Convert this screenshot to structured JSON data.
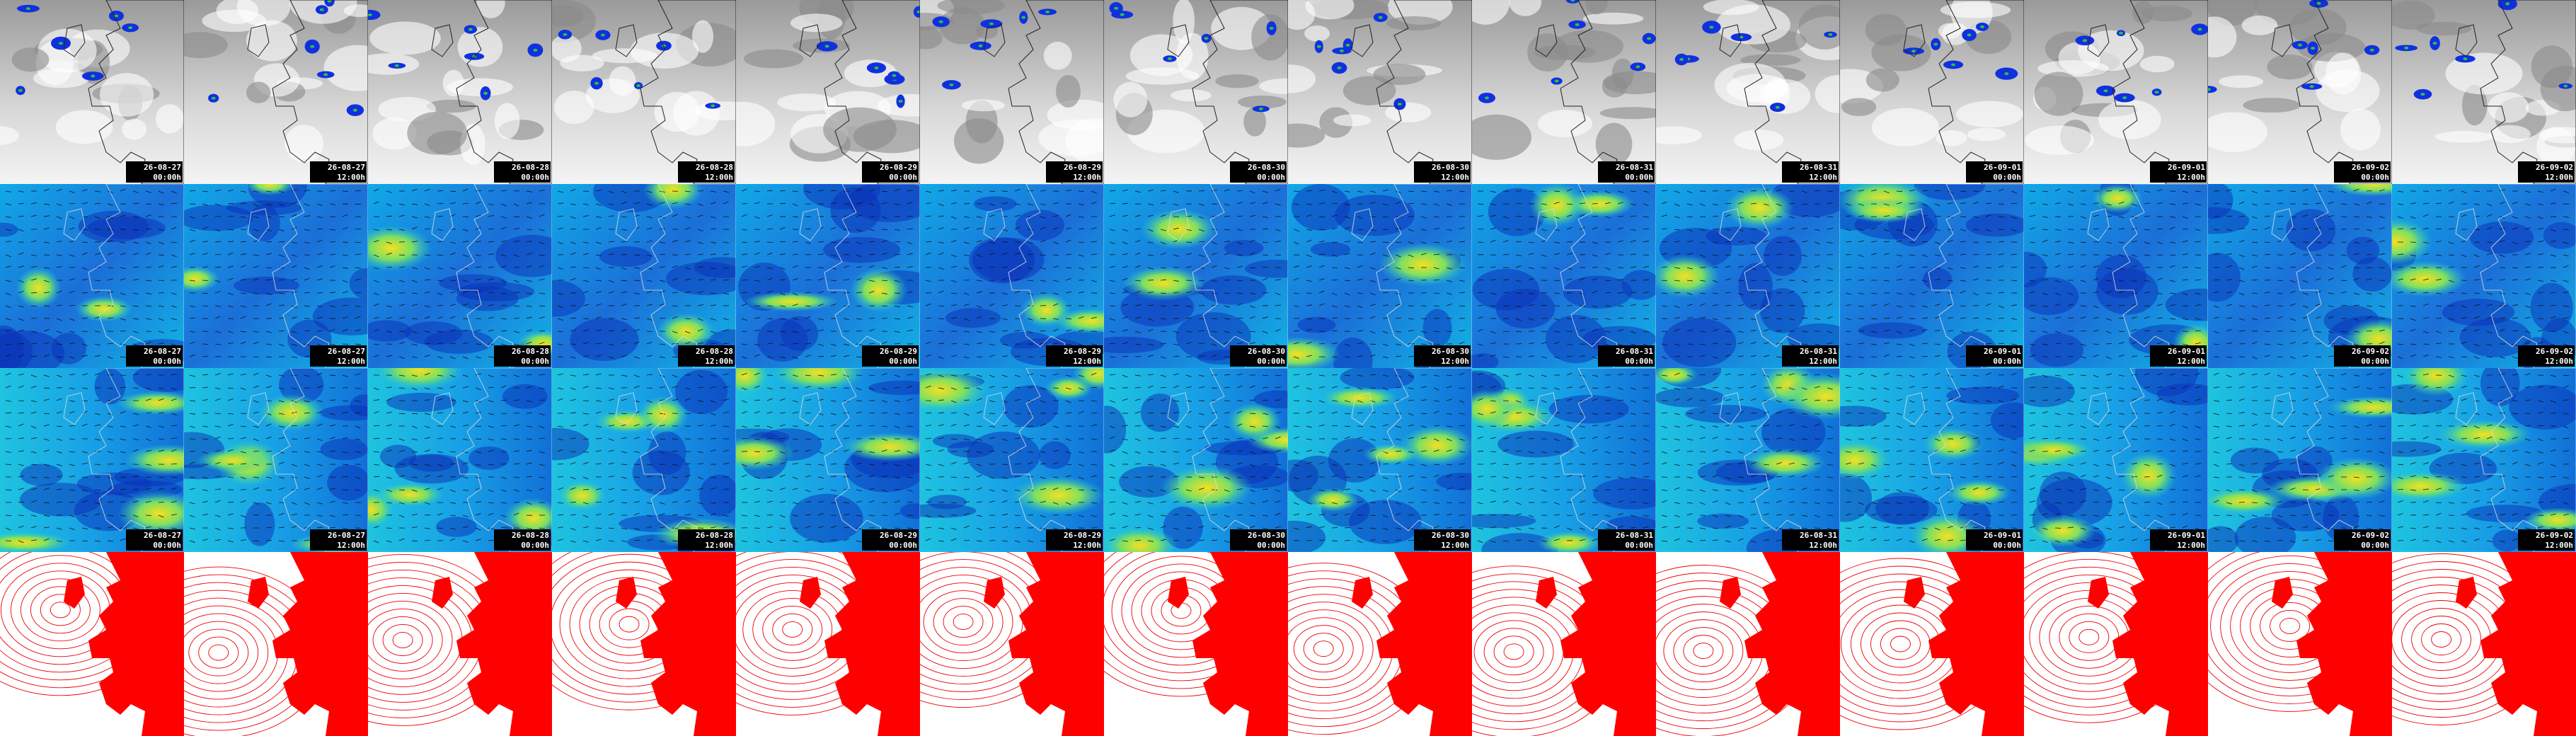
{
  "columns": [
    {
      "date": "26-08-27",
      "time": "00:00h"
    },
    {
      "date": "26-08-27",
      "time": "12:00h"
    },
    {
      "date": "26-08-28",
      "time": "00:00h"
    },
    {
      "date": "26-08-28",
      "time": "12:00h"
    },
    {
      "date": "26-08-29",
      "time": "00:00h"
    },
    {
      "date": "26-08-29",
      "time": "12:00h"
    },
    {
      "date": "26-08-30",
      "time": "00:00h"
    },
    {
      "date": "26-08-30",
      "time": "12:00h"
    },
    {
      "date": "26-08-31",
      "time": "00:00h"
    },
    {
      "date": "26-08-31",
      "time": "12:00h"
    },
    {
      "date": "26-09-01",
      "time": "00:00h"
    },
    {
      "date": "26-09-01",
      "time": "12:00h"
    },
    {
      "date": "26-09-02",
      "time": "00:00h"
    },
    {
      "date": "26-09-02",
      "time": "12:00h"
    }
  ]
}
